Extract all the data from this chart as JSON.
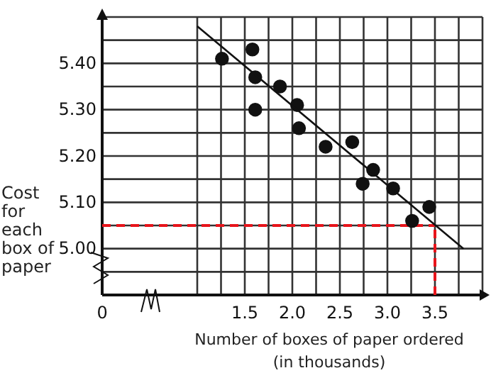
{
  "chart_data": {
    "type": "scatter",
    "xlabel": "Number of boxes of paper ordered (in thousands)",
    "ylabel": "Cost for each box of paper",
    "ylim": [
      4.9,
      5.5
    ],
    "xlim": [
      0,
      4.0
    ],
    "xticks": [
      0,
      {
        "value": 1.0,
        "label": null
      },
      {
        "value": 1.25,
        "label": null
      },
      1.5,
      {
        "value": 1.75,
        "label": null
      },
      {
        "value": 2.0,
        "label": "2.0"
      },
      {
        "value": 2.25,
        "label": null
      },
      2.5,
      {
        "value": 2.75,
        "label": null
      },
      {
        "value": 3.0,
        "label": "3.0"
      },
      {
        "value": 3.25,
        "label": null
      },
      3.5,
      {
        "value": 3.75,
        "label": null
      },
      {
        "value": 4.0,
        "label": null
      }
    ],
    "yticks": [
      {
        "value": 4.9,
        "label": null
      },
      {
        "value": 4.95,
        "label": null
      },
      {
        "value": 5.0,
        "label": "5.00"
      },
      {
        "value": 5.05,
        "label": null
      },
      {
        "value": 5.1,
        "label": "5.10"
      },
      {
        "value": 5.15,
        "label": null
      },
      {
        "value": 5.2,
        "label": "5.20"
      },
      {
        "value": 5.25,
        "label": null
      },
      {
        "value": 5.3,
        "label": "5.30"
      },
      {
        "value": 5.35,
        "label": null
      },
      {
        "value": 5.4,
        "label": "5.40"
      },
      {
        "value": 5.45,
        "label": null
      },
      {
        "value": 5.5,
        "label": null
      }
    ],
    "grid": true,
    "series": [
      {
        "marker": "circle",
        "color": "#111111",
        "x": [
          1.26,
          1.58,
          1.61,
          1.61,
          1.87,
          2.05,
          2.07,
          2.35,
          2.63,
          2.74,
          2.85,
          3.06,
          3.26,
          3.44
        ],
        "values": [
          5.41,
          5.43,
          5.37,
          5.3,
          5.35,
          5.31,
          5.26,
          5.22,
          5.23,
          5.14,
          5.17,
          5.13,
          5.06,
          5.09
        ]
      },
      {
        "type": "line",
        "color": "#111111",
        "x": [
          1.0,
          3.8
        ],
        "values": [
          5.48,
          5.0
        ]
      }
    ],
    "ref_lines": [
      {
        "axis": "y",
        "value": 5.05,
        "color": "#e8141b",
        "line_style": "dashed"
      },
      {
        "axis": "x",
        "value": 3.5,
        "color": "#e8141b",
        "line_style": "dashed"
      }
    ]
  }
}
